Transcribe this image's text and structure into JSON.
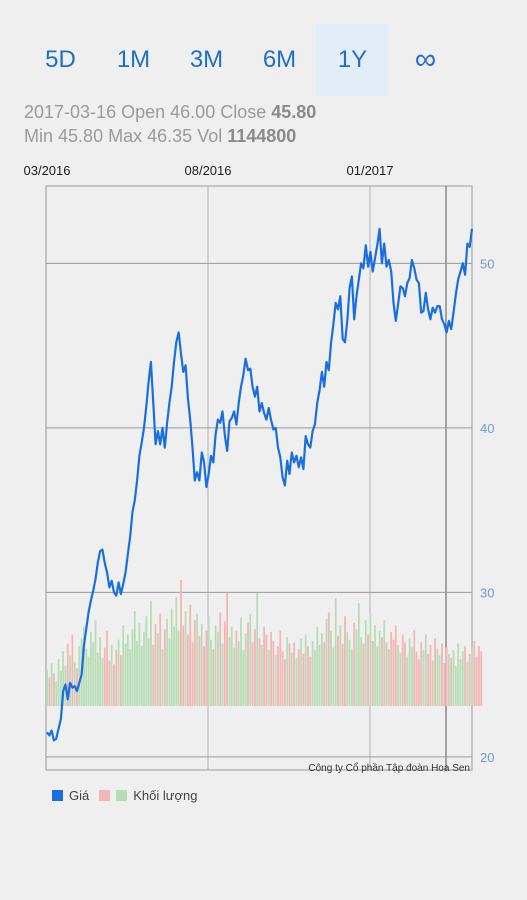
{
  "tabs": [
    {
      "label": "5D",
      "active": false
    },
    {
      "label": "1M",
      "active": false
    },
    {
      "label": "3M",
      "active": false
    },
    {
      "label": "6M",
      "active": false
    },
    {
      "label": "1Y",
      "active": true
    },
    {
      "label": "∞",
      "active": false
    }
  ],
  "info": {
    "date": "2017-03-16",
    "open_label": "Open",
    "open": "46.00",
    "close_label": "Close",
    "close": "45.80",
    "min_label": "Min",
    "min": "45.80",
    "max_label": "Max",
    "max": "46.35",
    "vol_label": "Vol",
    "vol": "1144800"
  },
  "chart_data": {
    "type": "line",
    "x_tick_labels": [
      "03/2016",
      "08/2016",
      "01/2017"
    ],
    "y_ticks": [
      20,
      30,
      40,
      50
    ],
    "ylim": [
      19.2,
      54.7
    ],
    "grid": true,
    "annotation": "Công ty Cổ phần Tập đoàn Hoa Sen",
    "colors": {
      "price": "#1a6fe0",
      "vol_up": "#b6ddb6",
      "vol_down": "#f3b5b5",
      "axis_text": "#6a9bd8"
    },
    "series": [
      {
        "name": "Giá",
        "values": [
          21.5,
          21.3,
          21.6,
          21.0,
          21.1,
          21.7,
          22.3,
          24.0,
          24.4,
          23.5,
          24.5,
          24.2,
          24.3,
          24.0,
          24.5,
          25.0,
          26.8,
          27.8,
          28.8,
          29.5,
          30.1,
          30.8,
          31.8,
          32.5,
          32.6,
          31.8,
          31.2,
          30.3,
          30.7,
          30.0,
          29.8,
          30.6,
          29.9,
          30.5,
          31.2,
          32.3,
          33.4,
          34.9,
          35.6,
          36.8,
          38.3,
          39.1,
          40.0,
          41.3,
          42.8,
          44.0,
          41.5,
          39.0,
          39.8,
          39.0,
          40.0,
          38.8,
          40.3,
          41.5,
          42.5,
          44.0,
          45.2,
          45.8,
          44.5,
          43.4,
          43.8,
          41.8,
          40.5,
          38.8,
          36.8,
          37.3,
          36.8,
          38.5,
          37.9,
          36.4,
          37.2,
          38.3,
          37.9,
          39.6,
          40.5,
          40.3,
          41.0,
          39.5,
          38.6,
          40.4,
          40.6,
          41.0,
          40.2,
          41.5,
          42.5,
          43.2,
          44.2,
          43.5,
          43.6,
          42.5,
          41.9,
          42.5,
          41.0,
          41.5,
          40.9,
          40.5,
          41.2,
          40.5,
          39.9,
          40.0,
          38.8,
          38.2,
          37.0,
          36.5,
          38.0,
          37.2,
          38.5,
          37.9,
          38.3,
          37.6,
          38.2,
          37.5,
          39.5,
          39.0,
          38.8,
          39.8,
          40.2,
          41.5,
          42.3,
          43.4,
          42.5,
          44.0,
          43.5,
          45.2,
          46.3,
          47.6,
          47.2,
          48.0,
          45.4,
          45.2,
          46.5,
          48.5,
          49.2,
          46.6,
          48.0,
          49.0,
          50.0,
          49.7,
          51.1,
          49.8,
          50.7,
          49.5,
          50.3,
          51.1,
          52.1,
          50.0,
          51.2,
          49.8,
          50.2,
          49.5,
          47.6,
          46.5,
          47.5,
          48.6,
          48.5,
          48.0,
          48.8,
          49.1,
          50.2,
          49.7,
          49.0,
          48.8,
          47.0,
          47.1,
          48.2,
          47.2,
          46.6,
          47.3,
          47.0,
          47.4,
          47.4,
          46.6,
          46.3,
          45.8,
          46.5,
          46.0,
          47.0,
          48.1,
          49.0,
          49.5,
          50.0,
          49.3,
          51.2,
          51.0,
          52.1
        ]
      },
      {
        "name": "Khối lượng",
        "values": [
          0.28,
          0.22,
          0.33,
          0.25,
          0.19,
          0.36,
          0.27,
          0.42,
          0.31,
          0.48,
          0.39,
          0.55,
          0.34,
          0.29,
          0.46,
          0.52,
          0.61,
          0.44,
          0.38,
          0.57,
          0.49,
          0.66,
          0.41,
          0.53,
          0.37,
          0.45,
          0.58,
          0.35,
          0.47,
          0.32,
          0.43,
          0.51,
          0.39,
          0.62,
          0.48,
          0.55,
          0.44,
          0.59,
          0.73,
          0.5,
          0.64,
          0.46,
          0.57,
          0.69,
          0.52,
          0.81,
          0.47,
          0.63,
          0.56,
          0.71,
          0.44,
          0.59,
          0.67,
          0.52,
          0.75,
          0.61,
          0.84,
          0.58,
          0.97,
          0.62,
          0.73,
          0.55,
          0.78,
          0.49,
          0.66,
          0.71,
          0.54,
          0.63,
          0.46,
          0.58,
          0.69,
          0.51,
          0.44,
          0.62,
          0.57,
          0.72,
          0.48,
          0.65,
          0.87,
          0.53,
          0.61,
          0.45,
          0.58,
          0.5,
          0.68,
          0.43,
          0.56,
          0.64,
          0.71,
          0.49,
          0.59,
          0.87,
          0.52,
          0.47,
          0.61,
          0.55,
          0.43,
          0.57,
          0.5,
          0.39,
          0.46,
          0.58,
          0.42,
          0.36,
          0.53,
          0.48,
          0.41,
          0.49,
          0.37,
          0.44,
          0.52,
          0.4,
          0.55,
          0.46,
          0.38,
          0.5,
          0.43,
          0.61,
          0.47,
          0.56,
          0.49,
          0.67,
          0.72,
          0.58,
          0.45,
          0.83,
          0.54,
          0.62,
          0.48,
          0.69,
          0.57,
          0.51,
          0.44,
          0.64,
          0.59,
          0.79,
          0.53,
          0.48,
          0.66,
          0.55,
          0.71,
          0.5,
          0.62,
          0.46,
          0.58,
          0.53,
          0.66,
          0.49,
          0.44,
          0.57,
          0.51,
          0.62,
          0.47,
          0.41,
          0.55,
          0.49,
          0.38,
          0.52,
          0.45,
          0.58,
          0.42,
          0.36,
          0.49,
          0.43,
          0.55,
          0.4,
          0.47,
          0.35,
          0.52,
          0.44,
          0.39,
          0.48,
          0.33,
          0.45,
          0.4,
          0.37,
          0.43,
          0.31,
          0.48,
          0.36,
          0.42,
          0.46,
          0.34,
          0.4,
          0.44,
          0.5,
          0.38,
          0.46,
          0.42
        ]
      }
    ]
  },
  "legend": {
    "price_label": "Giá",
    "volume_label": "Khối lượng"
  }
}
